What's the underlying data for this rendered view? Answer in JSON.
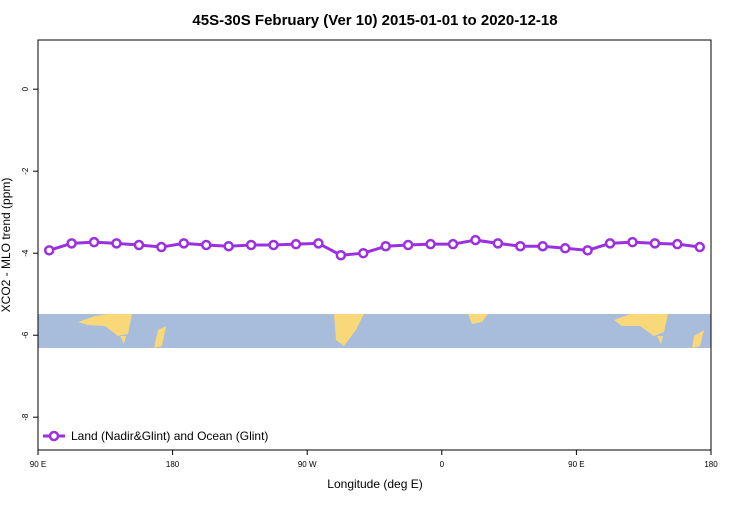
{
  "chart_data": {
    "type": "line",
    "title": "45S-30S February (Ver 10)   2015-01-01 to 2020-12-18",
    "x_label": "Longitude (deg E)",
    "y_label": "XCO2 - MLO trend (ppm)",
    "x": [
      97.5,
      112.5,
      127.5,
      142.5,
      157.5,
      172.5,
      187.5,
      202.5,
      217.5,
      232.5,
      247.5,
      262.5,
      277.5,
      292.5,
      307.5,
      322.5,
      337.5,
      352.5,
      367.5,
      382.5,
      397.5,
      412.5,
      427.5,
      442.5,
      457.5,
      472.5,
      487.5,
      502.5,
      517.5,
      532.5
    ],
    "series": [
      {
        "name": "Land (Nadir&Glint) and Ocean (Glint)",
        "color": "#9b30e0",
        "values": [
          -3.93,
          -3.76,
          -3.73,
          -3.76,
          -3.8,
          -3.85,
          -3.76,
          -3.8,
          -3.83,
          -3.8,
          -3.8,
          -3.78,
          -3.76,
          -4.05,
          -4.0,
          -3.83,
          -3.8,
          -3.78,
          -3.78,
          -3.68,
          -3.76,
          -3.83,
          -3.83,
          -3.88,
          -3.93,
          -3.76,
          -3.73,
          -3.76,
          -3.78,
          -3.85
        ]
      }
    ],
    "xlim": [
      90,
      540
    ],
    "xticks": [
      {
        "value": 90,
        "label": "90 E"
      },
      180,
      {
        "value": 270,
        "label": "90 W"
      },
      {
        "value": 360,
        "label": "0"
      },
      {
        "value": 450,
        "label": "90 E"
      },
      {
        "value": 540,
        "label": "180"
      }
    ],
    "ylim": [
      -8.8,
      1.2
    ],
    "yticks": [
      0,
      -2,
      -4,
      -6,
      -8
    ],
    "legend": "bottom-left"
  }
}
